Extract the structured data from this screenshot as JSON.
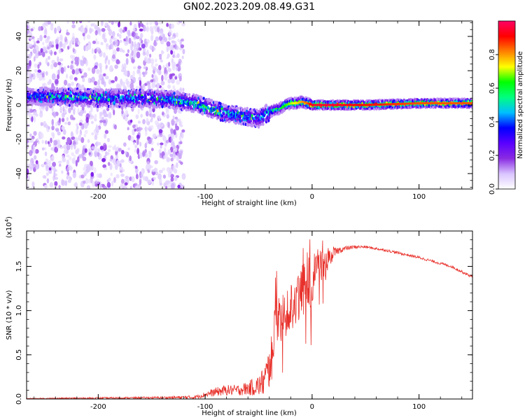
{
  "title": "GN02.2023.209.08.49.G31",
  "chart_data": [
    {
      "type": "heatmap",
      "xlabel": "Height of straight line (km)",
      "ylabel": "Frequency (Hz)",
      "xlim": [
        -267,
        150
      ],
      "ylim": [
        -49,
        49
      ],
      "xticks": [
        -200,
        -100,
        0,
        100
      ],
      "yticks": [
        -40,
        -20,
        0,
        20,
        40
      ],
      "colorbar": {
        "label": "Normalized spectral amplitude",
        "range": [
          0,
          1
        ],
        "ticks": [
          0.0,
          0.2,
          0.4,
          0.6,
          0.8
        ],
        "colors": [
          "#ffffff",
          "#d9c4ff",
          "#8a2be2",
          "#5a00ff",
          "#0000ff",
          "#00bfff",
          "#00ff80",
          "#00ff00",
          "#ffff00",
          "#ff8000",
          "#ff0000",
          "#ff0066"
        ]
      },
      "ridge": {
        "x": [
          -267,
          -240,
          -200,
          -160,
          -130,
          -110,
          -100,
          -90,
          -80,
          -70,
          -60,
          -50,
          -40,
          -35,
          -30,
          -25,
          -20,
          -15,
          -10,
          -5,
          0,
          20,
          50,
          100,
          150
        ],
        "y": [
          5,
          5,
          4,
          4,
          3,
          1,
          -1,
          -3,
          -5,
          -6,
          -7,
          -8,
          -4,
          -3,
          -2,
          0,
          1,
          1,
          2,
          1,
          0,
          0,
          0,
          1,
          1
        ],
        "amplitude": [
          0.4,
          0.45,
          0.45,
          0.45,
          0.5,
          0.55,
          0.55,
          0.55,
          0.5,
          0.5,
          0.5,
          0.45,
          0.55,
          0.6,
          0.6,
          0.65,
          0.7,
          0.75,
          0.8,
          0.85,
          0.95,
          0.95,
          0.9,
          0.85,
          0.85
        ]
      },
      "noise_region_x": [
        -267,
        -120
      ]
    },
    {
      "type": "line",
      "xlabel": "Height of straight line (km)",
      "ylabel": "SNR (10 * v/v)",
      "y_scale_label": "(x10",
      "y_scale_exp": "4",
      "xlim": [
        -267,
        150
      ],
      "ylim": [
        0,
        1.9
      ],
      "xticks": [
        -200,
        -100,
        0,
        100
      ],
      "yticks": [
        0.0,
        0.5,
        1.0,
        1.5
      ],
      "ytick_labels": [
        "0.0",
        "0.5",
        "1.0",
        "1.5"
      ],
      "series": [
        {
          "color": "#e8302a",
          "x": [
            -267,
            -200,
            -150,
            -110,
            -100,
            -90,
            -80,
            -70,
            -60,
            -50,
            -45,
            -40,
            -38,
            -35,
            -30,
            -25,
            -20,
            -15,
            -10,
            -5,
            0,
            5,
            10,
            15,
            20,
            25,
            30,
            40,
            50,
            70,
            100,
            130,
            150
          ],
          "y": [
            0.005,
            0.01,
            0.015,
            0.02,
            0.05,
            0.08,
            0.1,
            0.1,
            0.12,
            0.15,
            0.2,
            0.35,
            0.5,
            0.7,
            0.85,
            0.95,
            1.05,
            1.15,
            1.2,
            1.3,
            1.35,
            1.45,
            1.5,
            1.6,
            1.65,
            1.68,
            1.7,
            1.72,
            1.72,
            1.68,
            1.6,
            1.5,
            1.38
          ],
          "spread": [
            0.005,
            0.01,
            0.01,
            0.02,
            0.03,
            0.05,
            0.06,
            0.06,
            0.08,
            0.12,
            0.18,
            0.25,
            0.3,
            0.35,
            0.3,
            0.3,
            0.3,
            0.3,
            0.3,
            0.3,
            0.3,
            0.25,
            0.2,
            0.15,
            0.06,
            0.04,
            0.03,
            0.02,
            0.015,
            0.015,
            0.015,
            0.015,
            0.015
          ]
        }
      ]
    }
  ]
}
